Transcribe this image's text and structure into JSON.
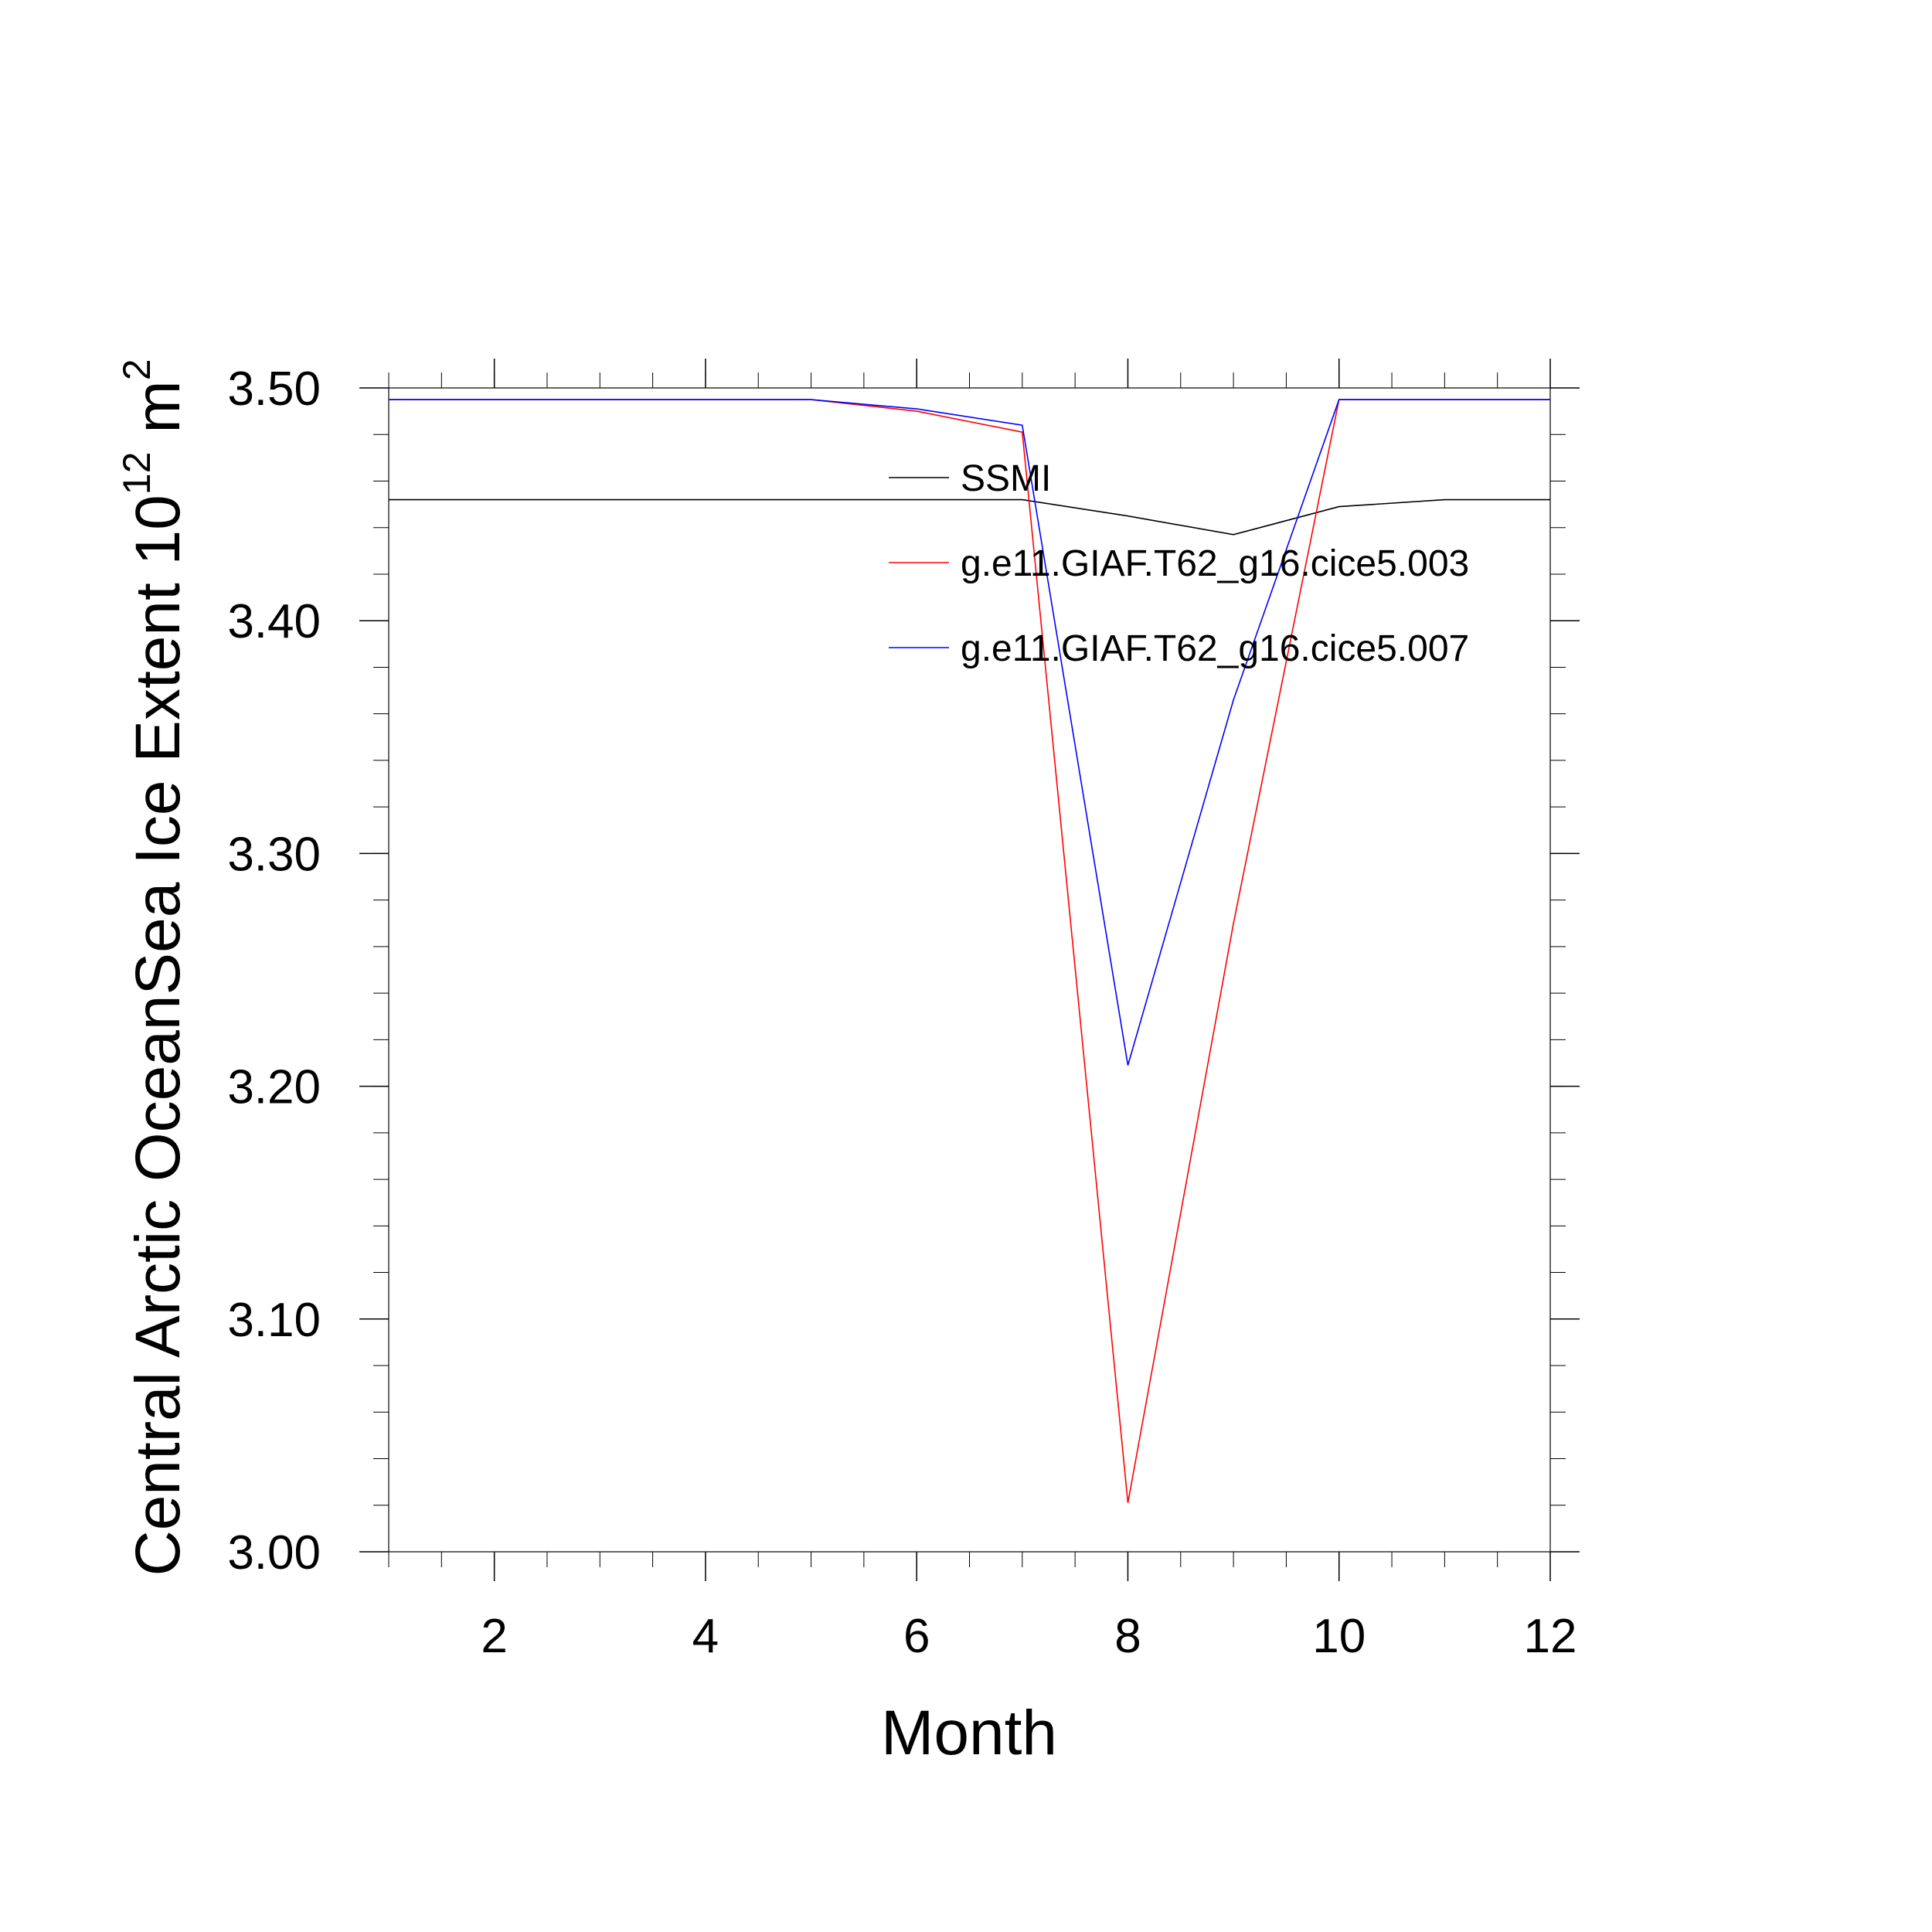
{
  "chart_data": {
    "type": "line",
    "title": "",
    "xlabel": "Month",
    "ylabel": {
      "prefix": "Central Arctic OceanSea Ice Extent 10",
      "exp1": "12",
      "unit": "m",
      "exp2": "2"
    },
    "xlim": [
      1,
      12
    ],
    "ylim": [
      3.0,
      3.5
    ],
    "x_ticks": [
      2,
      4,
      6,
      8,
      10,
      12
    ],
    "x_tick_labels": [
      "2",
      "4",
      "6",
      "8",
      "10",
      "12"
    ],
    "y_ticks": [
      3.0,
      3.1,
      3.2,
      3.3,
      3.4,
      3.5
    ],
    "y_tick_labels": [
      "3.00",
      "3.10",
      "3.20",
      "3.30",
      "3.40",
      "3.50"
    ],
    "grid": false,
    "legend_position": "top-right inside",
    "x": [
      1,
      2,
      3,
      4,
      5,
      6,
      7,
      8,
      9,
      10,
      11,
      12
    ],
    "series": [
      {
        "name": "SSMI",
        "color": "#000000",
        "values": [
          3.452,
          3.452,
          3.452,
          3.452,
          3.452,
          3.452,
          3.452,
          3.445,
          3.437,
          3.449,
          3.452,
          3.452
        ]
      },
      {
        "name": "g.e11.GIAF.T62_g16.cice5.003",
        "color": "#ff0000",
        "values": [
          3.495,
          3.495,
          3.495,
          3.495,
          3.495,
          3.49,
          3.481,
          3.021,
          3.27,
          3.495,
          3.495,
          3.495
        ]
      },
      {
        "name": "g.e11.GIAF.T62_g16.cice5.007",
        "color": "#0000ff",
        "values": [
          3.495,
          3.495,
          3.495,
          3.495,
          3.495,
          3.491,
          3.484,
          3.209,
          3.366,
          3.495,
          3.495,
          3.495
        ]
      }
    ]
  }
}
